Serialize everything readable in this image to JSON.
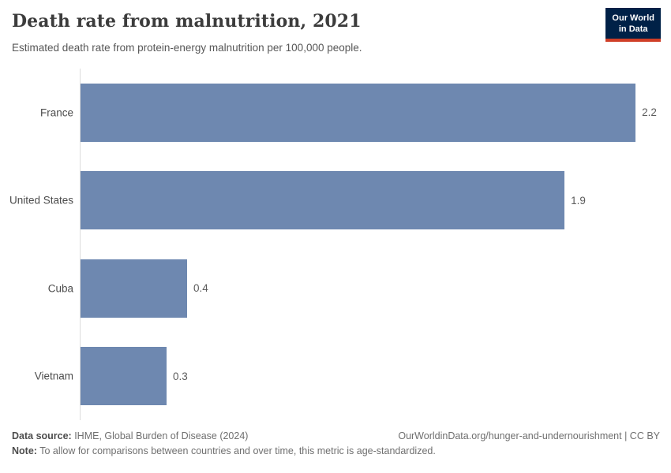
{
  "header": {
    "title": "Death rate from malnutrition, 2021",
    "subtitle": "Estimated death rate from protein-energy malnutrition per 100,000 people.",
    "logo": {
      "line1": "Our World",
      "line2": "in Data"
    }
  },
  "chart_data": {
    "type": "bar",
    "orientation": "horizontal",
    "title": "Death rate from malnutrition, 2021",
    "subtitle": "Estimated death rate from protein-energy malnutrition per 100,000 people.",
    "categories": [
      "France",
      "United States",
      "Cuba",
      "Vietnam"
    ],
    "values": [
      2.2,
      1.9,
      0.4,
      0.3
    ],
    "value_labels": [
      "2.2",
      "1.9",
      "0.4",
      "0.3"
    ],
    "bar_fractions": [
      1.0,
      0.872,
      0.192,
      0.155
    ],
    "xlabel": "",
    "ylabel": "",
    "xlim": [
      0,
      2.3
    ],
    "grid": false,
    "legend": false,
    "bar_color": "#6e88b0",
    "axis_line_color": "#dcdcdc"
  },
  "footer": {
    "source_label": "Data source:",
    "source_text": " IHME, Global Burden of Disease (2024)",
    "link_text": "OurWorldinData.org/hunger-and-undernourishment | CC BY",
    "note_label": "Note:",
    "note_text": " To allow for comparisons between countries and over time, this metric is age-standardized."
  }
}
